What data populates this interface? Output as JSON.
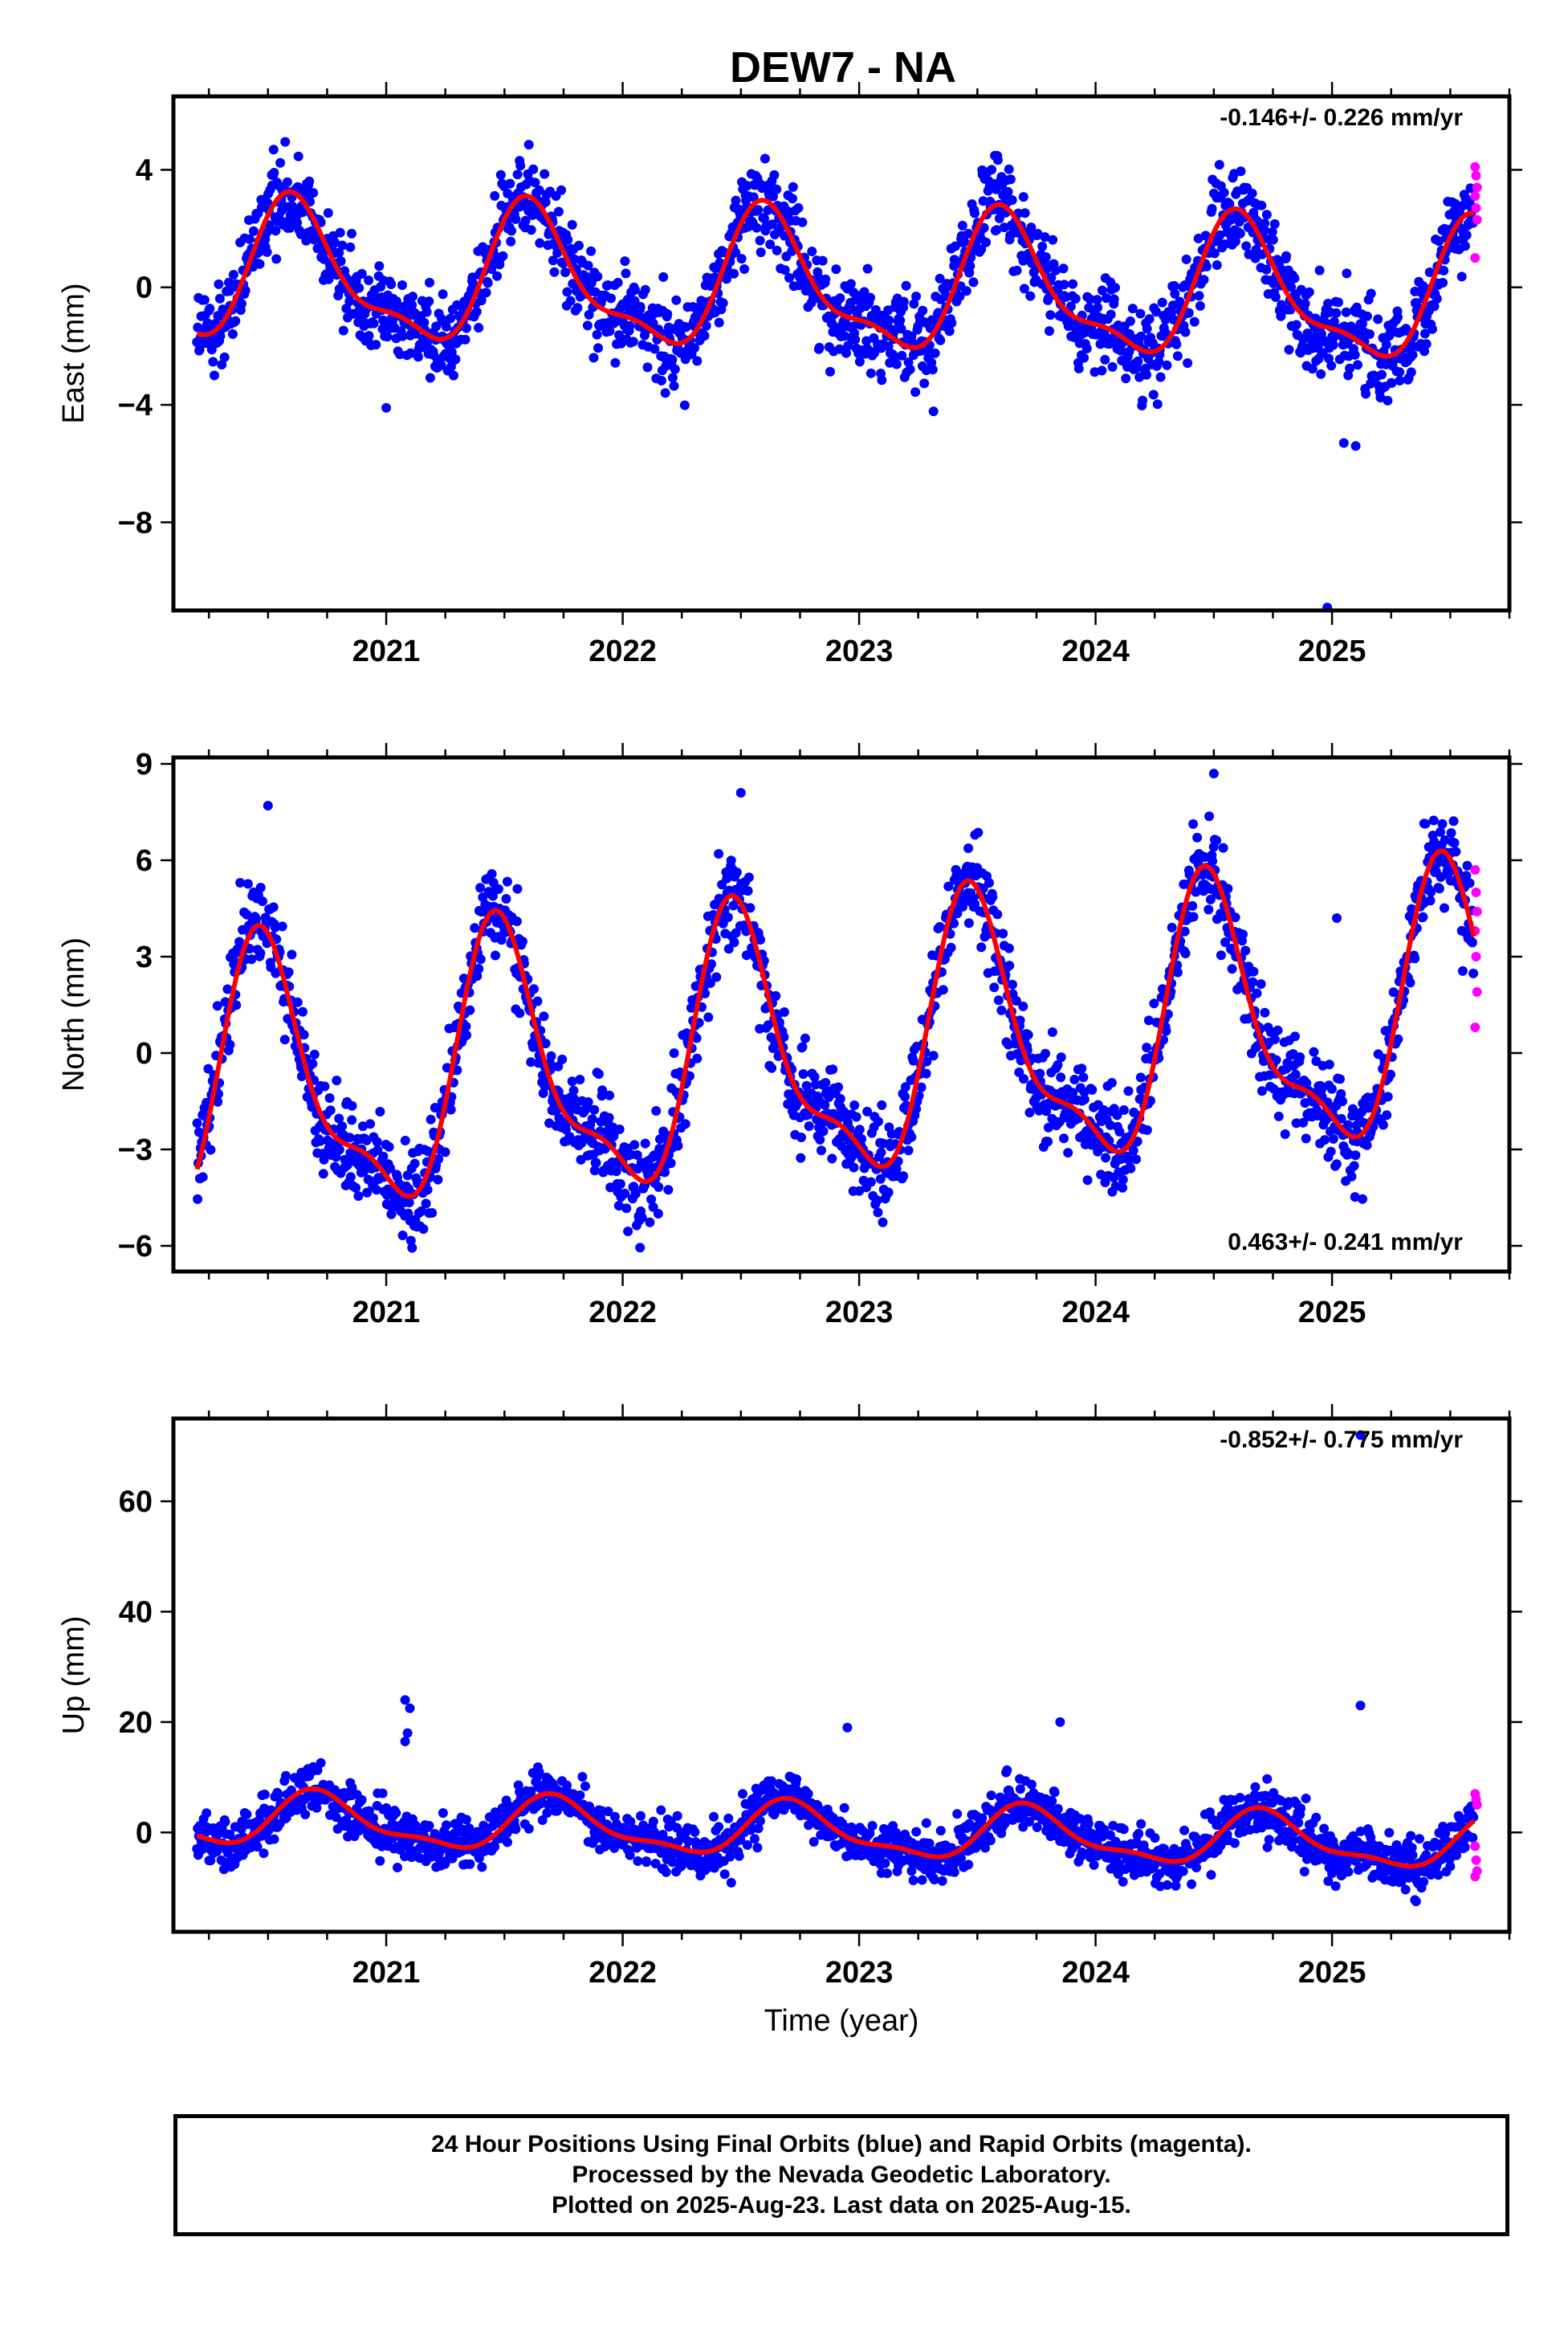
{
  "title": "DEW7 - NA",
  "colors": {
    "final_orbits": "#0000ff",
    "rapid_orbits": "#ff00ff",
    "model_fit": "#ff0000",
    "frame": "#000000"
  },
  "footer": {
    "line1": "24 Hour Positions Using Final Orbits (blue) and Rapid Orbits (magenta).",
    "line2": "Processed by the Nevada Geodetic Laboratory.",
    "line3": "Plotted on 2025-Aug-23. Last data on 2025-Aug-15."
  },
  "chart_data": [
    {
      "type": "scatter",
      "component": "east",
      "ylabel": "East (mm)",
      "xlabel": "",
      "rate": "-0.146+/- 0.226 mm/yr",
      "rate_position": "top-right",
      "xlim": [
        2020.1,
        2025.75
      ],
      "ylim": [
        -11,
        6.5
      ],
      "xticks": [
        "2021",
        "2022",
        "2023",
        "2024",
        "2025"
      ],
      "yticks": [
        "4",
        "0",
        "−4",
        "−8"
      ],
      "yticks_values": [
        4,
        0,
        -4,
        -8
      ],
      "grid": false,
      "seasonal": {
        "amplitude_mm": 2.2,
        "peak_fraction": 0.62,
        "trend_mm_per_yr": -0.146
      },
      "outliers": [
        [
          2024.98,
          -10.9
        ],
        [
          2025.05,
          -5.3
        ],
        [
          2021.0,
          -4.1
        ],
        [
          2025.1,
          -5.4
        ]
      ],
      "rapid_orbits_y": [
        4.1,
        3.8,
        3.4,
        3.1,
        2.7,
        2.3,
        1.0
      ]
    },
    {
      "type": "scatter",
      "component": "north",
      "ylabel": "North (mm)",
      "xlabel": "",
      "rate": "0.463+/- 0.241 mm/yr",
      "rate_position": "bottom-right",
      "xlim": [
        2020.1,
        2025.75
      ],
      "ylim": [
        -6.8,
        9.2
      ],
      "xticks": [
        "2021",
        "2022",
        "2023",
        "2024",
        "2025"
      ],
      "yticks": [
        "9",
        "6",
        "3",
        "0",
        "−3",
        "−6"
      ],
      "yticks_values": [
        9,
        6,
        3,
        0,
        -3,
        -6
      ],
      "grid": false,
      "seasonal": {
        "amplitude_mm": 3.9,
        "peak_fraction": 0.49,
        "trend_mm_per_yr": 0.463
      },
      "outliers": [
        [
          2024.5,
          8.7
        ],
        [
          2022.5,
          8.1
        ],
        [
          2020.5,
          7.7
        ],
        [
          2025.02,
          4.2
        ]
      ],
      "rapid_orbits_y": [
        5.7,
        5.0,
        4.4,
        3.8,
        3.0,
        1.9,
        0.8
      ]
    },
    {
      "type": "scatter",
      "component": "up",
      "ylabel": "Up (mm)",
      "xlabel": "Time (year)",
      "rate": "-0.852+/- 0.775 mm/yr",
      "rate_position": "top-right",
      "xlim": [
        2020.1,
        2025.75
      ],
      "ylim": [
        -18,
        75
      ],
      "xticks": [
        "2021",
        "2022",
        "2023",
        "2024",
        "2025"
      ],
      "yticks": [
        "60",
        "40",
        "20",
        "0"
      ],
      "yticks_values": [
        60,
        40,
        20,
        0
      ],
      "grid": false,
      "seasonal": {
        "amplitude_mm": 4.5,
        "peak_fraction": 0.72,
        "trend_mm_per_yr": -0.852
      },
      "outliers": [
        [
          2021.08,
          24
        ],
        [
          2021.1,
          22.5
        ],
        [
          2021.09,
          18
        ],
        [
          2021.08,
          16.5
        ],
        [
          2025.12,
          72
        ],
        [
          2025.12,
          23
        ],
        [
          2023.85,
          20
        ],
        [
          2022.95,
          19
        ]
      ],
      "rapid_orbits_y": [
        7.0,
        6.0,
        5.0,
        -2.5,
        -5.0,
        -7.0,
        -8.0
      ]
    }
  ]
}
